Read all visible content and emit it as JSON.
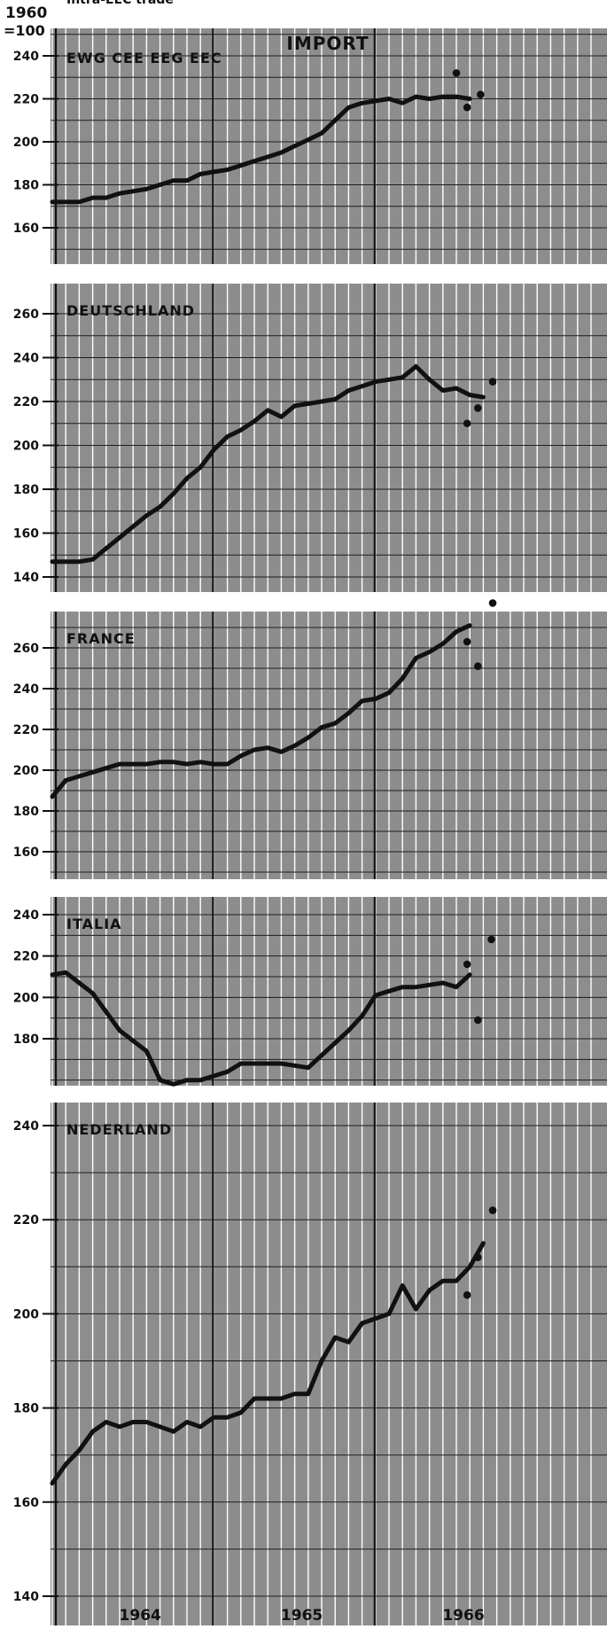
{
  "header": {
    "base_line1": "1960",
    "base_line2": "=100",
    "subtitle": "Intra-EEC trade",
    "title": "IMPORT"
  },
  "x_axis": {
    "year_labels": [
      "1964",
      "1965",
      "1966"
    ]
  },
  "colors": {
    "panel_bg": "#8d8d8d",
    "grid_line": "#ffffff",
    "series_line": "#111111",
    "axis_text": "#111111"
  },
  "chart_data": [
    {
      "type": "line",
      "title": "EWG CEE EEG EEC",
      "xlabel": "",
      "ylabel": "",
      "yticks": [
        160,
        180,
        200,
        220,
        240
      ],
      "ylim": [
        150,
        250
      ],
      "xlim": [
        0,
        40
      ],
      "year_boundaries": [
        12,
        24
      ],
      "x": [
        0,
        1,
        2,
        3,
        4,
        5,
        6,
        7,
        8,
        9,
        10,
        11,
        12,
        13,
        14,
        15,
        16,
        17,
        18,
        19,
        20,
        21,
        22,
        23,
        24,
        25,
        26,
        27,
        28,
        29,
        30,
        31
      ],
      "series": [
        {
          "values": [
            172,
            172,
            172,
            174,
            174,
            176,
            177,
            178,
            180,
            182,
            182,
            185,
            186,
            187,
            189,
            191,
            193,
            195,
            198,
            201,
            204,
            210,
            216,
            218,
            219,
            220,
            218,
            221,
            220,
            221,
            221,
            220
          ]
        }
      ],
      "scatter": [
        {
          "x": 30.0,
          "y": 232
        },
        {
          "x": 30.8,
          "y": 216
        },
        {
          "x": 31.8,
          "y": 222
        }
      ]
    },
    {
      "type": "line",
      "title": "DEUTSCHLAND",
      "xlabel": "",
      "ylabel": "",
      "yticks": [
        140,
        160,
        180,
        200,
        220,
        240,
        260
      ],
      "ylim": [
        135,
        268
      ],
      "xlim": [
        0,
        40
      ],
      "year_boundaries": [
        12,
        24
      ],
      "x": [
        0,
        1,
        2,
        3,
        4,
        5,
        6,
        7,
        8,
        9,
        10,
        11,
        12,
        13,
        14,
        15,
        16,
        17,
        18,
        19,
        20,
        21,
        22,
        23,
        24,
        25,
        26,
        27,
        28,
        29,
        30,
        31,
        32
      ],
      "series": [
        {
          "values": [
            147,
            147,
            147,
            148,
            153,
            158,
            163,
            168,
            172,
            178,
            185,
            190,
            198,
            204,
            207,
            211,
            216,
            213,
            218,
            219,
            220,
            221,
            225,
            227,
            229,
            230,
            231,
            236,
            230,
            225,
            226,
            223,
            222
          ]
        }
      ],
      "scatter": [
        {
          "x": 30.8,
          "y": 210
        },
        {
          "x": 31.6,
          "y": 217
        },
        {
          "x": 32.7,
          "y": 229
        }
      ]
    },
    {
      "type": "line",
      "title": "FRANCE",
      "xlabel": "",
      "ylabel": "",
      "yticks": [
        160,
        180,
        200,
        220,
        240,
        260
      ],
      "ylim": [
        150,
        275
      ],
      "xlim": [
        0,
        40
      ],
      "year_boundaries": [
        12,
        24
      ],
      "x": [
        0,
        1,
        2,
        3,
        4,
        5,
        6,
        7,
        8,
        9,
        10,
        11,
        12,
        13,
        14,
        15,
        16,
        17,
        18,
        19,
        20,
        21,
        22,
        23,
        24,
        25,
        26,
        27,
        28,
        29,
        30,
        31,
        32
      ],
      "series": [
        {
          "values": [
            187,
            195,
            197,
            199,
            201,
            203,
            203,
            203,
            204,
            204,
            203,
            204,
            203,
            203,
            207,
            210,
            211,
            209,
            212,
            216,
            221,
            223,
            228,
            234,
            235,
            238,
            245,
            255,
            258,
            262,
            268,
            271,
            null
          ]
        }
      ],
      "scatter": [
        {
          "x": 30.8,
          "y": 263
        },
        {
          "x": 31.6,
          "y": 251
        },
        {
          "x": 32.7,
          "y": 282
        }
      ]
    },
    {
      "type": "line",
      "title": "ITALIA",
      "xlabel": "",
      "ylabel": "",
      "yticks": [
        180,
        200,
        220,
        240
      ],
      "ylim": [
        160,
        245
      ],
      "xlim": [
        0,
        40
      ],
      "year_boundaries": [
        12,
        24
      ],
      "x": [
        0,
        1,
        2,
        3,
        4,
        5,
        6,
        7,
        8,
        9,
        10,
        11,
        12,
        13,
        14,
        15,
        16,
        17,
        18,
        19,
        20,
        21,
        22,
        23,
        24,
        25,
        26,
        27,
        28,
        29,
        30,
        31
      ],
      "series": [
        {
          "values": [
            211,
            212,
            207,
            202,
            193,
            184,
            179,
            174,
            160,
            158,
            160,
            160,
            162,
            164,
            168,
            168,
            168,
            168,
            167,
            166,
            172,
            178,
            184,
            191,
            201,
            203,
            205,
            205,
            206,
            207,
            205,
            211
          ]
        }
      ],
      "scatter": [
        {
          "x": 30.8,
          "y": 216
        },
        {
          "x": 31.6,
          "y": 189
        },
        {
          "x": 32.6,
          "y": 228
        }
      ]
    },
    {
      "type": "line",
      "title": "NEDERLAND",
      "xlabel": "",
      "ylabel": "",
      "yticks": [
        140,
        160,
        180,
        200,
        220,
        240
      ],
      "ylim": [
        132,
        245
      ],
      "xlim": [
        0,
        40
      ],
      "year_boundaries": [
        12,
        24
      ],
      "x": [
        0,
        1,
        2,
        3,
        4,
        5,
        6,
        7,
        8,
        9,
        10,
        11,
        12,
        13,
        14,
        15,
        16,
        17,
        18,
        19,
        20,
        21,
        22,
        23,
        24,
        25,
        26,
        27,
        28,
        29,
        30,
        31,
        32
      ],
      "series": [
        {
          "values": [
            164,
            168,
            171,
            175,
            177,
            176,
            177,
            177,
            176,
            175,
            177,
            176,
            178,
            178,
            179,
            182,
            182,
            182,
            183,
            183,
            190,
            195,
            194,
            198,
            199,
            200,
            206,
            201,
            205,
            207,
            207,
            210,
            215
          ]
        }
      ],
      "scatter": [
        {
          "x": 30.8,
          "y": 204
        },
        {
          "x": 31.6,
          "y": 212
        },
        {
          "x": 32.7,
          "y": 222
        }
      ]
    }
  ]
}
